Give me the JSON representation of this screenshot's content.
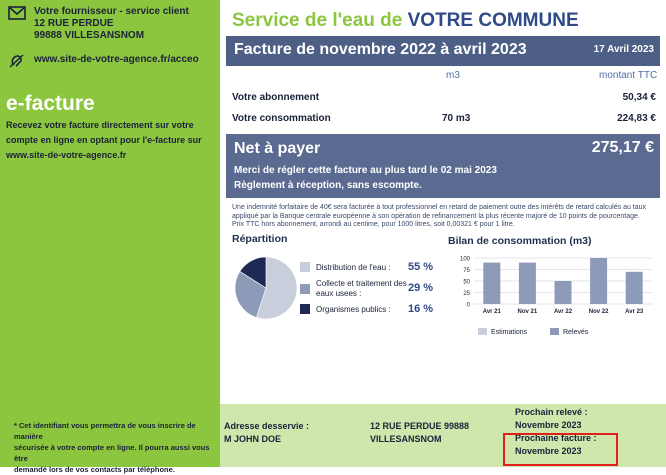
{
  "contact": {
    "line1": "Votre fournisseur - service client",
    "line2": "12 RUE PERDUE",
    "line3": "99888 VILLESANSNOM",
    "website": "www.site-de-votre-agence.fr/acceo"
  },
  "efacture": {
    "title": "e-facture",
    "line1": "Recevez votre facture directement sur votre",
    "line2": "compte en ligne en optant pour l'e-facture sur",
    "line3": "www.site-de-votre-agence.fr"
  },
  "footnote": {
    "line1": "* Cet identifiant vous permettra de vous inscrire de manière",
    "line2": "sécurisée à votre compte en ligne. Il pourra aussi vous être",
    "line3": "demandé lors de vos contacts par téléphone."
  },
  "header": {
    "service_prefix": "Service de l'eau de ",
    "service_commune": "VOTRE COMMUNE",
    "invoice_title": "Facture de novembre 2022 à avril 2023",
    "invoice_date": "17 Avril 2023"
  },
  "table": {
    "col_volume": "m3",
    "col_amount": "montant TTC",
    "rows": [
      {
        "label": "Votre abonnement",
        "volume": "",
        "amount": "50,34 €"
      },
      {
        "label": "Votre consommation",
        "volume": "70 m3",
        "amount": "224,83 €"
      }
    ]
  },
  "net": {
    "label": "Net à payer",
    "amount": "275,17 €",
    "message1": "Merci de régler cette facture au plus tard le 02 mai 2023",
    "message2": "Règlement à réception, sans escompte."
  },
  "legal": {
    "line1": "Une indemnité forfaitaire de 40€ sera facturée à tout professionnel en retard de paiement outre des intérêts de retard calculés au taux",
    "line2": "appliqué par la Banque centrale européenne à son opération de refinancement la plus récente majoré de 10 points de pourcentage.",
    "line3": "Prix TTC hors abonnement, arrondi au centime, pour 1000 litres, soit 0,00321 € pour 1 litre."
  },
  "repartition": {
    "title": "Répartition",
    "items": [
      {
        "label1": "Distribution de l'eau :",
        "label2": "",
        "pct": "55 %"
      },
      {
        "label1": "Collecte et traitement des",
        "label2": "eaux usees :",
        "pct": "29 %"
      },
      {
        "label1": "Organismes publics :",
        "label2": "",
        "pct": "16 %"
      }
    ]
  },
  "chart_title": "Bilan de consommation (m3)",
  "chart_data": [
    {
      "type": "pie",
      "categories": [
        "Distribution de l'eau",
        "Collecte et traitement des eaux usees",
        "Organismes publics"
      ],
      "values": [
        55,
        29,
        16
      ],
      "colors": [
        "#c9cedd",
        "#8e9bb8",
        "#1e2a54"
      ]
    },
    {
      "type": "bar",
      "title": "Bilan de consommation (m3)",
      "categories": [
        "Avr 21",
        "Nov 21",
        "Avr 22",
        "Nov 22",
        "Avr 23"
      ],
      "series": [
        {
          "name": "Relevés",
          "values": [
            90,
            90,
            50,
            100,
            70
          ]
        }
      ],
      "ylim": [
        0,
        100
      ],
      "yticks": [
        "0",
        "25",
        "50",
        "75",
        "100"
      ],
      "legend": [
        "Estimations",
        "Relevés"
      ],
      "legend_colors": [
        "#c9cedd",
        "#8e9bb8"
      ],
      "legend_position": "bottom",
      "grid": true
    }
  ],
  "bottom": {
    "address_label1": "Adresse desservie :",
    "address_label2": "M JOHN DOE",
    "address_line1": "12 RUE PERDUE 99888",
    "address_line2": "VILLESANSNOM",
    "next_reading_label": "Prochain relevé :",
    "next_reading_value": "Novembre 2023",
    "next_invoice_label": "Prochaine facture :",
    "next_invoice_value": "Novembre 2023"
  },
  "colors": {
    "green": "#8cc63f",
    "navy": "#4e5f86",
    "highlight": "#e0201c"
  }
}
